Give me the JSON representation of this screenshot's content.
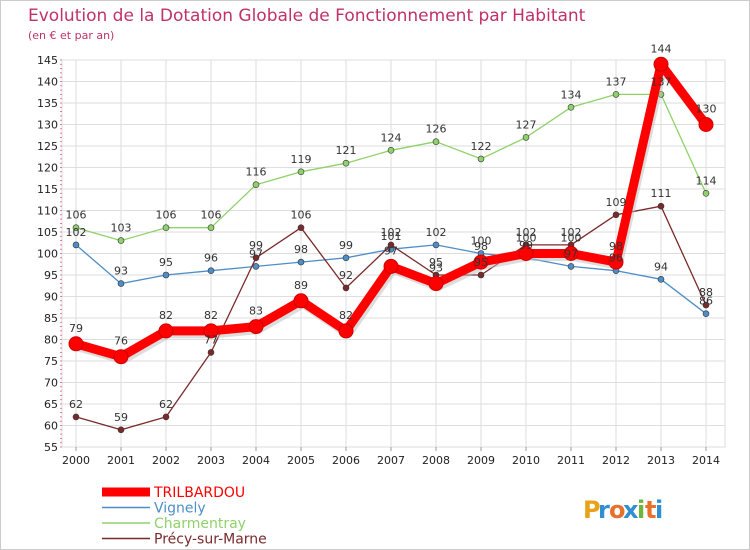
{
  "title": "Evolution de la Dotation Globale de Fonctionnement par Habitant",
  "subtitle": "(en € et par an)",
  "logo": {
    "letters": [
      "P",
      "r",
      "o",
      "x",
      "i",
      "t",
      "i"
    ],
    "colors": [
      "#e8a21a",
      "#2f8fd1",
      "#e8702a",
      "#2f8fd1",
      "#6cb63c",
      "#e8702a",
      "#2f8fd1"
    ]
  },
  "chart_data": {
    "type": "line",
    "title": "Evolution de la Dotation Globale de Fonctionnement par Habitant",
    "subtitle": "(en € et par an)",
    "x": [
      "2000",
      "2001",
      "2002",
      "2003",
      "2004",
      "2005",
      "2006",
      "2007",
      "2008",
      "2009",
      "2010",
      "2011",
      "2012",
      "2013",
      "2014"
    ],
    "ylim": [
      55,
      145
    ],
    "yticks": [
      55,
      60,
      65,
      70,
      75,
      80,
      85,
      90,
      95,
      100,
      105,
      110,
      115,
      120,
      125,
      130,
      135,
      140,
      145
    ],
    "grid": true,
    "legend_position": "bottom-left",
    "series": [
      {
        "name": "TRILBARDOU",
        "color": "#ff0000",
        "emphasis": true,
        "values": [
          79,
          76,
          82,
          82,
          83,
          89,
          82,
          97,
          93,
          98,
          100,
          100,
          98,
          144,
          130
        ]
      },
      {
        "name": "Vignely",
        "color": "#4e8ec8",
        "values": [
          102,
          93,
          95,
          96,
          97,
          98,
          99,
          101,
          102,
          100,
          99,
          97,
          96,
          94,
          86
        ]
      },
      {
        "name": "Charmentray",
        "color": "#8fd16a",
        "values": [
          106,
          103,
          106,
          106,
          116,
          119,
          121,
          124,
          126,
          122,
          127,
          134,
          137,
          137,
          114
        ]
      },
      {
        "name": "Précy-sur-Marne",
        "color": "#7a2a2a",
        "values": [
          62,
          59,
          62,
          77,
          99,
          106,
          92,
          102,
          95,
          95,
          102,
          102,
          109,
          111,
          88
        ]
      }
    ]
  }
}
